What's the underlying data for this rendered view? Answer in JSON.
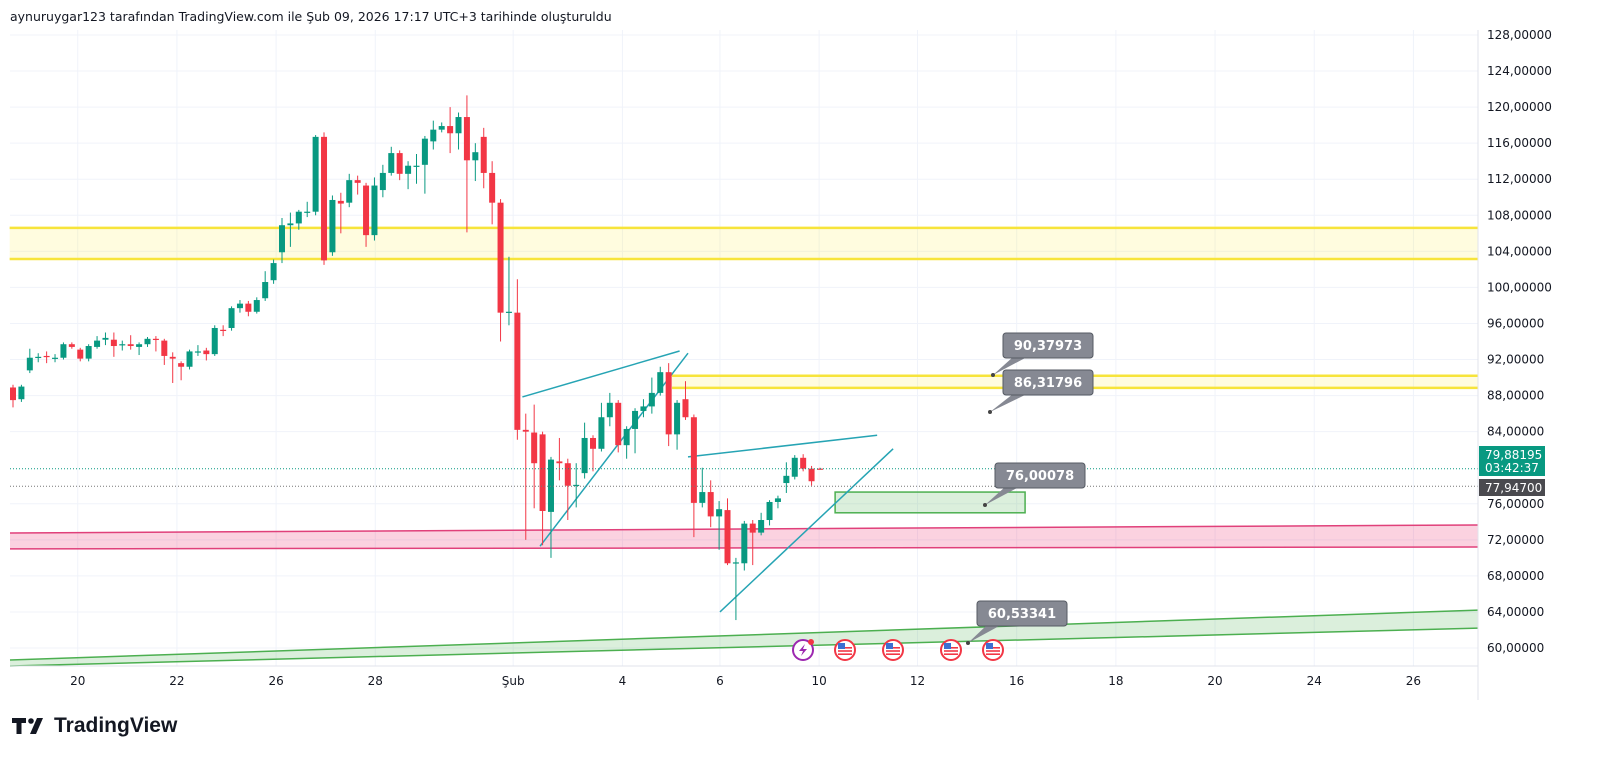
{
  "header": {
    "attribution": "aynuruygar123 tarafından TradingView.com ile Şub 09, 2026 17:17 UTC+3 tarihinde oluşturuldu"
  },
  "logo": {
    "text": "TradingView"
  },
  "colors": {
    "up": "#089981",
    "down": "#f23645",
    "yellow": "#f7e43a",
    "pink": "#e0407a",
    "green": "#4caf50",
    "teal": "#26a4b4",
    "callout": "#868993",
    "last_price_bg": "#089981",
    "prev_price_bg": "#4a4a4f"
  },
  "price_axis": {
    "labels": [
      "128,00000",
      "124,00000",
      "120,00000",
      "116,00000",
      "112,00000",
      "108,00000",
      "104,00000",
      "100,00000",
      "96,00000",
      "92,00000",
      "88,00000",
      "84,00000",
      "76,00000",
      "72,00000",
      "68,00000",
      "64,00000",
      "60,00000"
    ],
    "last_price": "79,88195",
    "countdown": "03:42:37",
    "prev_price": "77,94700"
  },
  "events": [
    "lightning-icon",
    "us-flag-icon",
    "us-flag-icon",
    "us-flag-icon",
    "us-flag-icon"
  ],
  "callouts": [
    "90,37973",
    "86,31796",
    "76,00078",
    "60,53341"
  ],
  "chart_data": {
    "type": "candlestick",
    "interval": "4h",
    "ylim": [
      58.1,
      128.55
    ],
    "xlim": [
      -0.4,
      173.6
    ],
    "yticks": [
      128,
      124,
      120,
      116,
      112,
      108,
      104,
      100,
      96,
      92,
      88,
      84,
      76,
      72,
      68,
      64,
      60
    ],
    "xticks": [
      {
        "label": "20",
        "index": 7.7
      },
      {
        "label": "22",
        "index": 19.5
      },
      {
        "label": "26",
        "index": 31.3
      },
      {
        "label": "28",
        "index": 43.1
      },
      {
        "label": "Şub",
        "index": 59.5
      },
      {
        "label": "4",
        "index": 72.5
      },
      {
        "label": "6",
        "index": 84.1
      },
      {
        "label": "10",
        "index": 95.9
      },
      {
        "label": "12",
        "index": 107.6
      },
      {
        "label": "16",
        "index": 119.4
      },
      {
        "label": "18",
        "index": 131.2
      },
      {
        "label": "20",
        "index": 143.0
      },
      {
        "label": "24",
        "index": 154.8
      },
      {
        "label": "26",
        "index": 166.6
      }
    ],
    "ohlc": [
      [
        88.9,
        89.2,
        86.7,
        87.5
      ],
      [
        87.6,
        89.2,
        87.3,
        89.0
      ],
      [
        90.8,
        93.2,
        90.5,
        92.2
      ],
      [
        92.3,
        92.7,
        91.7,
        92.3
      ],
      [
        92.4,
        92.9,
        91.6,
        92.3
      ],
      [
        92.1,
        92.6,
        91.7,
        92.2
      ],
      [
        92.2,
        93.9,
        92.0,
        93.7
      ],
      [
        93.7,
        93.9,
        93.2,
        93.4
      ],
      [
        93.1,
        93.3,
        91.8,
        92.1
      ],
      [
        92.1,
        93.7,
        91.8,
        93.5
      ],
      [
        93.4,
        94.6,
        93.2,
        94.1
      ],
      [
        94.2,
        95.0,
        93.6,
        94.4
      ],
      [
        94.2,
        95.0,
        92.3,
        93.5
      ],
      [
        93.6,
        94.1,
        93.0,
        93.7
      ],
      [
        93.7,
        94.7,
        93.1,
        93.5
      ],
      [
        93.4,
        93.9,
        92.5,
        93.7
      ],
      [
        93.7,
        94.5,
        93.4,
        94.3
      ],
      [
        94.3,
        94.6,
        92.9,
        94.2
      ],
      [
        94.1,
        94.3,
        91.4,
        92.4
      ],
      [
        92.3,
        92.8,
        89.4,
        92.1
      ],
      [
        91.6,
        91.8,
        89.7,
        91.2
      ],
      [
        91.2,
        93.1,
        90.9,
        92.9
      ],
      [
        92.8,
        93.6,
        92.4,
        92.9
      ],
      [
        93.0,
        93.3,
        91.9,
        92.6
      ],
      [
        92.6,
        95.8,
        92.4,
        95.5
      ],
      [
        95.3,
        95.8,
        94.6,
        95.2
      ],
      [
        95.5,
        97.9,
        95.2,
        97.7
      ],
      [
        97.7,
        98.6,
        97.2,
        98.2
      ],
      [
        98.2,
        98.5,
        96.8,
        97.3
      ],
      [
        97.3,
        98.9,
        97.1,
        98.6
      ],
      [
        98.8,
        101.8,
        98.5,
        100.6
      ],
      [
        100.8,
        103.1,
        100.4,
        102.7
      ],
      [
        103.9,
        107.7,
        102.7,
        106.9
      ],
      [
        106.9,
        108.3,
        104.5,
        107.1
      ],
      [
        107.1,
        108.6,
        106.4,
        108.4
      ],
      [
        108.3,
        109.5,
        107.8,
        108.4
      ],
      [
        108.4,
        116.9,
        108.0,
        116.7
      ],
      [
        116.7,
        117.2,
        102.5,
        103.0
      ],
      [
        103.9,
        110.2,
        103.5,
        109.7
      ],
      [
        109.6,
        110.5,
        106.0,
        109.3
      ],
      [
        109.4,
        112.6,
        108.9,
        111.9
      ],
      [
        111.9,
        112.4,
        110.3,
        111.6
      ],
      [
        111.3,
        111.6,
        104.5,
        105.8
      ],
      [
        105.8,
        112.2,
        105.2,
        111.3
      ],
      [
        110.8,
        113.6,
        110.0,
        112.7
      ],
      [
        112.7,
        115.6,
        112.4,
        114.9
      ],
      [
        114.9,
        115.2,
        111.9,
        112.6
      ],
      [
        112.6,
        114.0,
        110.9,
        113.5
      ],
      [
        113.4,
        114.8,
        111.5,
        113.5
      ],
      [
        113.6,
        116.8,
        110.4,
        116.5
      ],
      [
        116.2,
        118.5,
        115.3,
        117.5
      ],
      [
        117.5,
        118.3,
        117.2,
        117.9
      ],
      [
        117.9,
        120.0,
        114.9,
        117.1
      ],
      [
        117.1,
        119.4,
        115.3,
        118.9
      ],
      [
        118.9,
        121.3,
        106.1,
        114.1
      ],
      [
        114.1,
        116.0,
        111.8,
        115.0
      ],
      [
        116.7,
        117.7,
        111.0,
        112.7
      ],
      [
        112.7,
        114.0,
        107.0,
        109.4
      ],
      [
        109.4,
        109.8,
        94.0,
        97.2
      ],
      [
        97.2,
        103.4,
        95.8,
        97.3
      ],
      [
        97.2,
        100.9,
        83.1,
        84.2
      ],
      [
        84.2,
        86.0,
        72.0,
        84.0
      ],
      [
        83.9,
        87.0,
        75.5,
        80.5
      ],
      [
        83.7,
        84.0,
        71.4,
        75.2
      ],
      [
        75.1,
        81.2,
        70.0,
        80.9
      ],
      [
        80.7,
        83.3,
        78.6,
        80.5
      ],
      [
        80.5,
        81.0,
        74.2,
        78.0
      ],
      [
        78.0,
        80.5,
        75.6,
        78.1
      ],
      [
        79.4,
        85.0,
        78.8,
        83.3
      ],
      [
        83.3,
        83.6,
        79.6,
        82.1
      ],
      [
        82.1,
        87.2,
        81.8,
        85.6
      ],
      [
        85.6,
        88.3,
        84.6,
        87.2
      ],
      [
        87.2,
        87.5,
        81.7,
        82.5
      ],
      [
        82.5,
        84.6,
        81.0,
        84.3
      ],
      [
        84.3,
        86.6,
        81.6,
        86.3
      ],
      [
        86.3,
        87.6,
        85.6,
        86.8
      ],
      [
        86.8,
        90.0,
        86.0,
        88.3
      ],
      [
        88.3,
        91.2,
        88.0,
        90.6
      ],
      [
        90.6,
        91.6,
        82.4,
        83.7
      ],
      [
        83.7,
        87.5,
        82.0,
        87.2
      ],
      [
        87.6,
        89.6,
        85.3,
        85.6
      ],
      [
        85.6,
        85.9,
        72.3,
        76.1
      ],
      [
        76.1,
        80.0,
        75.6,
        77.3
      ],
      [
        77.3,
        78.6,
        73.4,
        74.6
      ],
      [
        74.6,
        76.3,
        70.9,
        75.4
      ],
      [
        75.3,
        76.6,
        69.2,
        69.4
      ],
      [
        69.5,
        70.0,
        63.1,
        69.5
      ],
      [
        69.4,
        74.1,
        68.6,
        73.8
      ],
      [
        73.8,
        74.2,
        69.2,
        72.8
      ],
      [
        72.8,
        75.0,
        72.5,
        74.2
      ],
      [
        74.2,
        76.4,
        73.6,
        76.2
      ],
      [
        76.2,
        76.9,
        75.5,
        76.6
      ],
      [
        78.3,
        80.6,
        77.2,
        79.1
      ],
      [
        79.0,
        81.4,
        78.7,
        81.1
      ],
      [
        81.1,
        81.5,
        79.6,
        79.9
      ],
      [
        79.9,
        80.2,
        78.0,
        78.5
      ],
      [
        79.9,
        80.0,
        79.8,
        79.88
      ]
    ],
    "last_price": 79.88195,
    "prev_price": 77.947,
    "zones": [
      {
        "name": "yellow-zone-upper",
        "from": 103.15,
        "to": 106.6,
        "start": -0.4,
        "color": "yellow"
      },
      {
        "name": "yellow-zone-lower",
        "from": 88.85,
        "to": 90.2,
        "start": 78.4,
        "color": "yellow"
      }
    ],
    "sloped_bands": [
      {
        "name": "pink-band",
        "upper": [
          [
            -0.4,
            72.76
          ],
          [
            174.3,
            73.65
          ]
        ],
        "lower": [
          [
            -0.4,
            71.0
          ],
          [
            174.3,
            71.2
          ]
        ],
        "color": "pink"
      },
      {
        "name": "green-channel",
        "upper": [
          [
            -0.4,
            58.67
          ],
          [
            174.3,
            64.2
          ]
        ],
        "lower": [
          [
            -0.4,
            56.96
          ],
          [
            174.3,
            62.2
          ]
        ],
        "color": "green"
      }
    ],
    "boxes": [
      {
        "name": "green-target-box",
        "x0": 97.8,
        "x1": 120.4,
        "p0": 77.3,
        "p1": 75.0,
        "color": "green"
      }
    ],
    "trendlines": [
      {
        "name": "wedge1-upper",
        "a": [
          60.6,
          87.85
        ],
        "b": [
          79.3,
          92.95
        ]
      },
      {
        "name": "wedge1-lower",
        "a": [
          62.7,
          71.3
        ],
        "b": [
          80.3,
          92.7
        ]
      },
      {
        "name": "wedge2-upper",
        "a": [
          80.3,
          81.2
        ],
        "b": [
          102.8,
          83.6
        ]
      },
      {
        "name": "wedge2-lower",
        "a": [
          84.1,
          64.0
        ],
        "b": [
          104.7,
          82.1
        ]
      }
    ]
  }
}
